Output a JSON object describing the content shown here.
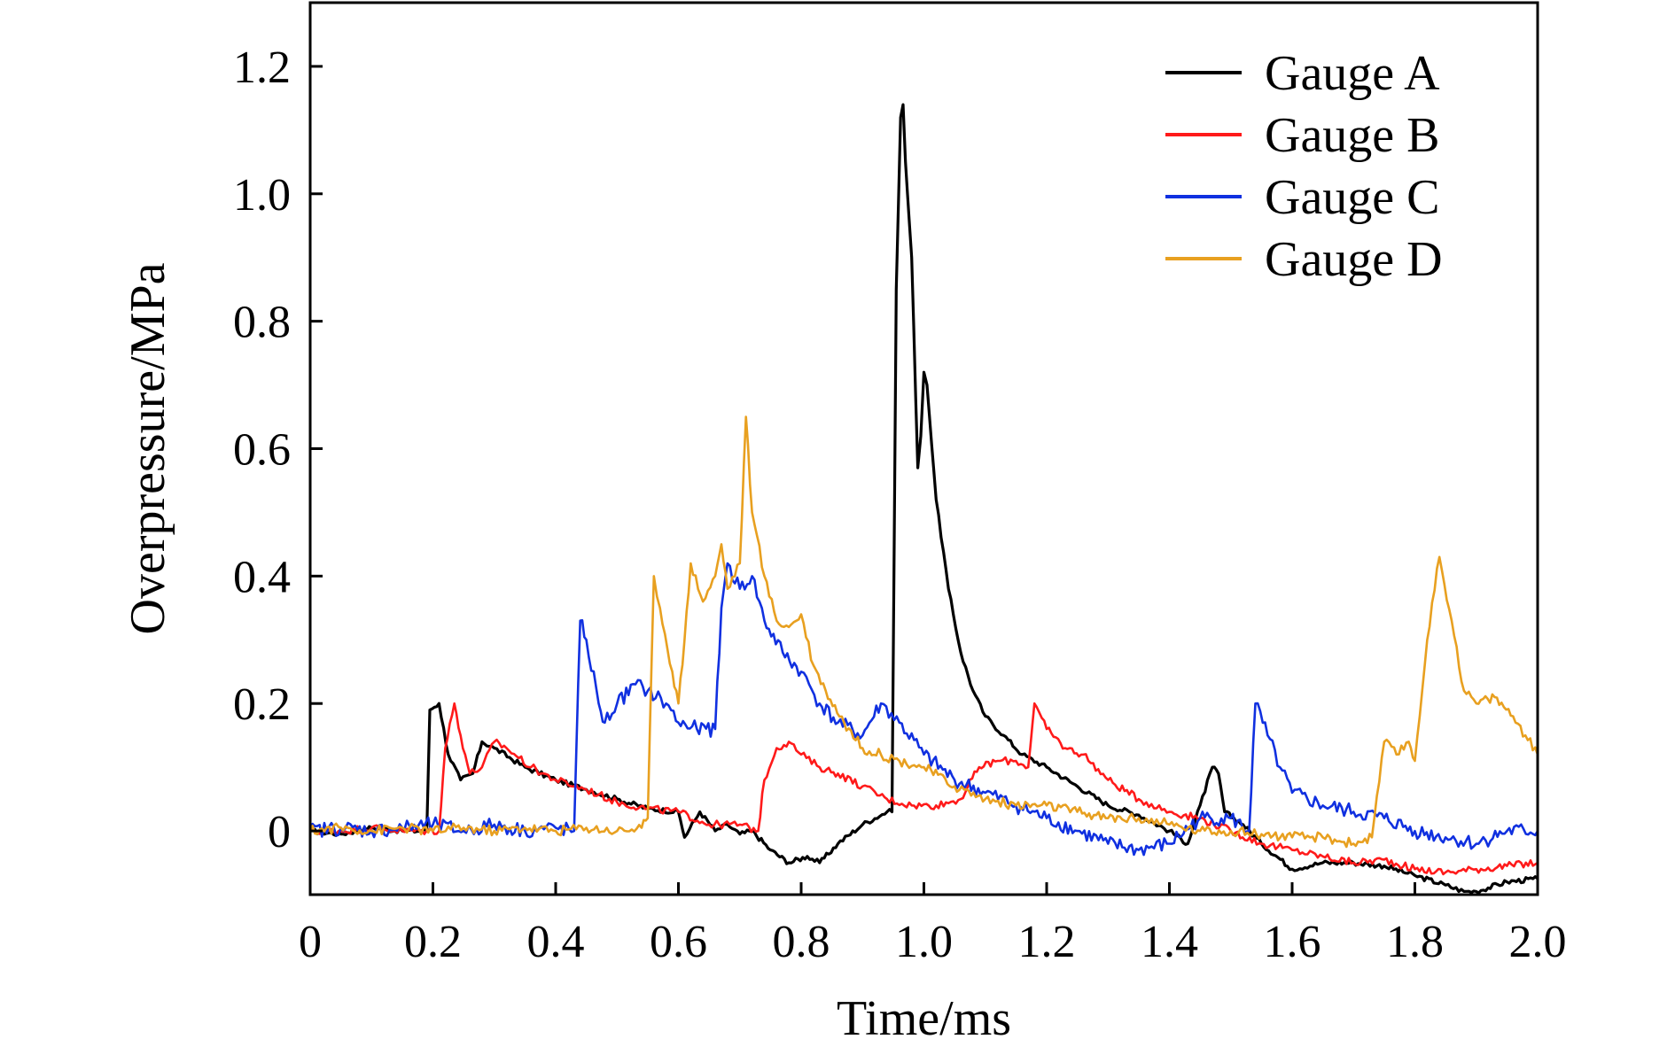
{
  "chart_data": {
    "type": "line",
    "title": "",
    "xlabel": "Time/ms",
    "ylabel": "Overpressure/MPa",
    "xlim": [
      0,
      2.0
    ],
    "ylim": [
      -0.1,
      1.3
    ],
    "xticks": [
      0,
      0.2,
      0.4,
      0.6,
      0.8,
      1.0,
      1.2,
      1.4,
      1.6,
      1.8,
      2.0
    ],
    "xtick_labels": [
      "0",
      "0.2",
      "0.4",
      "0.6",
      "0.8",
      "1.0",
      "1.2",
      "1.4",
      "1.6",
      "1.8",
      "2.0"
    ],
    "yticks": [
      0,
      0.2,
      0.4,
      0.6,
      0.8,
      1.0,
      1.2
    ],
    "ytick_labels": [
      "0",
      "0.2",
      "0.4",
      "0.6",
      "0.8",
      "1.0",
      "1.2"
    ],
    "grid": false,
    "legend_position": "top-right",
    "series": [
      {
        "name": "Gauge A",
        "color": "#000000",
        "points": [
          [
            0,
            0
          ],
          [
            0.05,
            -0.005
          ],
          [
            0.1,
            0.005
          ],
          [
            0.15,
            0
          ],
          [
            0.19,
            0.0
          ],
          [
            0.195,
            0.19
          ],
          [
            0.21,
            0.2
          ],
          [
            0.225,
            0.12
          ],
          [
            0.245,
            0.08
          ],
          [
            0.265,
            0.09
          ],
          [
            0.28,
            0.14
          ],
          [
            0.3,
            0.13
          ],
          [
            0.35,
            0.1
          ],
          [
            0.4,
            0.08
          ],
          [
            0.45,
            0.065
          ],
          [
            0.5,
            0.05
          ],
          [
            0.55,
            0.035
          ],
          [
            0.6,
            0.03
          ],
          [
            0.61,
            -0.01
          ],
          [
            0.635,
            0.03
          ],
          [
            0.66,
            0.0
          ],
          [
            0.68,
            0.01
          ],
          [
            0.7,
            -0.005
          ],
          [
            0.72,
            0.0
          ],
          [
            0.75,
            -0.03
          ],
          [
            0.78,
            -0.05
          ],
          [
            0.81,
            -0.04
          ],
          [
            0.83,
            -0.05
          ],
          [
            0.86,
            -0.02
          ],
          [
            0.9,
            0.01
          ],
          [
            0.94,
            0.03
          ],
          [
            0.948,
            0.03
          ],
          [
            0.955,
            0.85
          ],
          [
            0.962,
            1.12
          ],
          [
            0.966,
            1.14
          ],
          [
            0.97,
            1.05
          ],
          [
            0.98,
            0.9
          ],
          [
            0.99,
            0.57
          ],
          [
            0.995,
            0.62
          ],
          [
            1.0,
            0.72
          ],
          [
            1.005,
            0.7
          ],
          [
            1.02,
            0.52
          ],
          [
            1.04,
            0.38
          ],
          [
            1.06,
            0.28
          ],
          [
            1.08,
            0.22
          ],
          [
            1.1,
            0.18
          ],
          [
            1.13,
            0.15
          ],
          [
            1.16,
            0.12
          ],
          [
            1.2,
            0.1
          ],
          [
            1.25,
            0.07
          ],
          [
            1.3,
            0.04
          ],
          [
            1.35,
            0.025
          ],
          [
            1.4,
            0.0
          ],
          [
            1.43,
            -0.02
          ],
          [
            1.45,
            0.04
          ],
          [
            1.47,
            0.1
          ],
          [
            1.48,
            0.09
          ],
          [
            1.49,
            0.03
          ],
          [
            1.52,
            0.01
          ],
          [
            1.55,
            -0.02
          ],
          [
            1.6,
            -0.06
          ],
          [
            1.65,
            -0.05
          ],
          [
            1.7,
            -0.05
          ],
          [
            1.75,
            -0.055
          ],
          [
            1.8,
            -0.07
          ],
          [
            1.85,
            -0.085
          ],
          [
            1.88,
            -0.095
          ],
          [
            1.9,
            -0.095
          ],
          [
            1.95,
            -0.08
          ],
          [
            2.0,
            -0.075
          ]
        ]
      },
      {
        "name": "Gauge B",
        "color": "#ff1a1a",
        "points": [
          [
            0,
            0
          ],
          [
            0.05,
            0.0
          ],
          [
            0.1,
            0.005
          ],
          [
            0.15,
            0
          ],
          [
            0.21,
            0.0
          ],
          [
            0.22,
            0.13
          ],
          [
            0.235,
            0.2
          ],
          [
            0.245,
            0.15
          ],
          [
            0.26,
            0.09
          ],
          [
            0.28,
            0.1
          ],
          [
            0.3,
            0.14
          ],
          [
            0.32,
            0.13
          ],
          [
            0.36,
            0.1
          ],
          [
            0.4,
            0.08
          ],
          [
            0.45,
            0.065
          ],
          [
            0.5,
            0.045
          ],
          [
            0.55,
            0.035
          ],
          [
            0.6,
            0.03
          ],
          [
            0.65,
            0.01
          ],
          [
            0.7,
            0.01
          ],
          [
            0.73,
            0.0
          ],
          [
            0.74,
            0.08
          ],
          [
            0.76,
            0.13
          ],
          [
            0.78,
            0.14
          ],
          [
            0.8,
            0.12
          ],
          [
            0.83,
            0.1
          ],
          [
            0.86,
            0.09
          ],
          [
            0.9,
            0.07
          ],
          [
            0.94,
            0.05
          ],
          [
            0.98,
            0.04
          ],
          [
            1.02,
            0.04
          ],
          [
            1.06,
            0.05
          ],
          [
            1.09,
            0.1
          ],
          [
            1.12,
            0.11
          ],
          [
            1.15,
            0.11
          ],
          [
            1.17,
            0.1
          ],
          [
            1.18,
            0.2
          ],
          [
            1.2,
            0.16
          ],
          [
            1.23,
            0.13
          ],
          [
            1.26,
            0.12
          ],
          [
            1.3,
            0.08
          ],
          [
            1.35,
            0.05
          ],
          [
            1.4,
            0.03
          ],
          [
            1.45,
            0.02
          ],
          [
            1.5,
            0.0
          ],
          [
            1.55,
            -0.02
          ],
          [
            1.6,
            -0.03
          ],
          [
            1.65,
            -0.04
          ],
          [
            1.7,
            -0.05
          ],
          [
            1.75,
            -0.045
          ],
          [
            1.8,
            -0.06
          ],
          [
            1.85,
            -0.065
          ],
          [
            1.9,
            -0.06
          ],
          [
            1.95,
            -0.055
          ],
          [
            2.0,
            -0.05
          ]
        ]
      },
      {
        "name": "Gauge C",
        "color": "#1030e0",
        "points": [
          [
            0,
            0
          ],
          [
            0.05,
            0.005
          ],
          [
            0.1,
            0.0
          ],
          [
            0.15,
            0.005
          ],
          [
            0.2,
            0.01
          ],
          [
            0.25,
            0.0
          ],
          [
            0.3,
            0.01
          ],
          [
            0.35,
            0.0
          ],
          [
            0.4,
            0.005
          ],
          [
            0.43,
            0.0
          ],
          [
            0.44,
            0.33
          ],
          [
            0.45,
            0.3
          ],
          [
            0.47,
            0.2
          ],
          [
            0.48,
            0.17
          ],
          [
            0.5,
            0.2
          ],
          [
            0.53,
            0.23
          ],
          [
            0.55,
            0.22
          ],
          [
            0.58,
            0.2
          ],
          [
            0.6,
            0.17
          ],
          [
            0.63,
            0.16
          ],
          [
            0.66,
            0.16
          ],
          [
            0.67,
            0.35
          ],
          [
            0.68,
            0.42
          ],
          [
            0.7,
            0.38
          ],
          [
            0.72,
            0.4
          ],
          [
            0.74,
            0.33
          ],
          [
            0.77,
            0.28
          ],
          [
            0.8,
            0.25
          ],
          [
            0.83,
            0.2
          ],
          [
            0.86,
            0.17
          ],
          [
            0.9,
            0.15
          ],
          [
            0.93,
            0.2
          ],
          [
            0.96,
            0.17
          ],
          [
            1.0,
            0.12
          ],
          [
            1.05,
            0.08
          ],
          [
            1.1,
            0.06
          ],
          [
            1.15,
            0.04
          ],
          [
            1.2,
            0.02
          ],
          [
            1.25,
            0.0
          ],
          [
            1.3,
            -0.02
          ],
          [
            1.35,
            -0.03
          ],
          [
            1.4,
            -0.02
          ],
          [
            1.45,
            0.02
          ],
          [
            1.5,
            0.02
          ],
          [
            1.53,
            0.0
          ],
          [
            1.54,
            0.2
          ],
          [
            1.56,
            0.15
          ],
          [
            1.58,
            0.1
          ],
          [
            1.6,
            0.06
          ],
          [
            1.65,
            0.04
          ],
          [
            1.7,
            0.03
          ],
          [
            1.75,
            0.02
          ],
          [
            1.8,
            0.0
          ],
          [
            1.85,
            -0.01
          ],
          [
            1.9,
            -0.02
          ],
          [
            1.95,
            0.0
          ],
          [
            2.0,
            0.0
          ]
        ]
      },
      {
        "name": "Gauge D",
        "color": "#e8a020",
        "points": [
          [
            0,
            0
          ],
          [
            0.05,
            0.005
          ],
          [
            0.1,
            0.0
          ],
          [
            0.15,
            0.005
          ],
          [
            0.2,
            0.0
          ],
          [
            0.25,
            0.005
          ],
          [
            0.3,
            0.0
          ],
          [
            0.35,
            0.005
          ],
          [
            0.4,
            0.0
          ],
          [
            0.45,
            0.005
          ],
          [
            0.5,
            0.0
          ],
          [
            0.54,
            0.005
          ],
          [
            0.55,
            0.02
          ],
          [
            0.56,
            0.4
          ],
          [
            0.57,
            0.35
          ],
          [
            0.59,
            0.25
          ],
          [
            0.6,
            0.2
          ],
          [
            0.61,
            0.3
          ],
          [
            0.62,
            0.42
          ],
          [
            0.64,
            0.36
          ],
          [
            0.66,
            0.4
          ],
          [
            0.67,
            0.45
          ],
          [
            0.68,
            0.38
          ],
          [
            0.7,
            0.42
          ],
          [
            0.71,
            0.65
          ],
          [
            0.72,
            0.5
          ],
          [
            0.74,
            0.4
          ],
          [
            0.76,
            0.33
          ],
          [
            0.78,
            0.32
          ],
          [
            0.8,
            0.34
          ],
          [
            0.82,
            0.26
          ],
          [
            0.84,
            0.22
          ],
          [
            0.87,
            0.17
          ],
          [
            0.9,
            0.13
          ],
          [
            0.93,
            0.12
          ],
          [
            0.96,
            0.11
          ],
          [
            1.0,
            0.1
          ],
          [
            1.05,
            0.07
          ],
          [
            1.1,
            0.05
          ],
          [
            1.15,
            0.04
          ],
          [
            1.2,
            0.04
          ],
          [
            1.25,
            0.03
          ],
          [
            1.3,
            0.02
          ],
          [
            1.35,
            0.02
          ],
          [
            1.4,
            0.01
          ],
          [
            1.45,
            0.0
          ],
          [
            1.5,
            0.0
          ],
          [
            1.55,
            -0.005
          ],
          [
            1.6,
            -0.01
          ],
          [
            1.65,
            -0.01
          ],
          [
            1.7,
            -0.02
          ],
          [
            1.73,
            -0.01
          ],
          [
            1.75,
            0.14
          ],
          [
            1.77,
            0.12
          ],
          [
            1.79,
            0.14
          ],
          [
            1.8,
            0.11
          ],
          [
            1.82,
            0.3
          ],
          [
            1.84,
            0.43
          ],
          [
            1.86,
            0.33
          ],
          [
            1.88,
            0.22
          ],
          [
            1.9,
            0.2
          ],
          [
            1.93,
            0.21
          ],
          [
            1.96,
            0.18
          ],
          [
            1.98,
            0.15
          ],
          [
            2.0,
            0.12
          ]
        ]
      }
    ]
  }
}
